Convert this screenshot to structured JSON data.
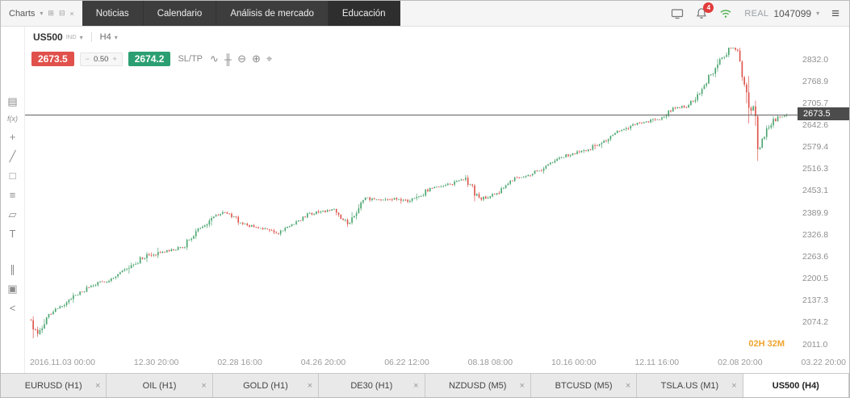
{
  "header": {
    "charts_label": "Charts",
    "nav_tabs": [
      "Noticias",
      "Calendario",
      "Análisis de mercado",
      "Educación"
    ],
    "notification_count": "4",
    "badge_color": "#e23b3b",
    "connection_color": "#4caf50",
    "account_type": "REAL",
    "account_number": "1047099"
  },
  "icons": {
    "caret_down": "▾",
    "hamburger": "≡",
    "close": "×",
    "popout": "⊞",
    "collapse": "⊟"
  },
  "symbol_bar": {
    "symbol": "US500",
    "market": "IND",
    "timeframe": "H4"
  },
  "trade": {
    "sell_price": "2673.5",
    "minus": "−",
    "spread": "0.50",
    "plus": "+",
    "buy_price": "2674.2",
    "sltp": "SL/TP",
    "colors": {
      "sell": "#e0514c",
      "buy": "#2c9f72"
    },
    "icons": [
      {
        "name": "line-chart-icon",
        "glyph": "∿"
      },
      {
        "name": "candles-icon",
        "glyph": "╫"
      },
      {
        "name": "zoom-out-icon",
        "glyph": "⊖"
      },
      {
        "name": "zoom-in-icon",
        "glyph": "⊕"
      },
      {
        "name": "pan-icon",
        "glyph": "⌖"
      }
    ]
  },
  "tool_rail": {
    "icons": [
      {
        "name": "chart-display-icon",
        "glyph": "▤"
      },
      {
        "name": "indicators-icon",
        "glyph": "f(x)"
      },
      {
        "name": "crosshair-icon",
        "glyph": "+"
      },
      {
        "name": "trendline-icon",
        "glyph": "╱"
      },
      {
        "name": "shapes-icon",
        "glyph": "□"
      },
      {
        "name": "fibonacci-icon",
        "glyph": "≡"
      },
      {
        "name": "eraser-icon",
        "glyph": "▱"
      },
      {
        "name": "text-tool-icon",
        "glyph": "T"
      },
      {
        "name": "volume-icon",
        "glyph": "∥"
      },
      {
        "name": "objects-icon",
        "glyph": "▣"
      },
      {
        "name": "share-icon",
        "glyph": "<"
      }
    ]
  },
  "chart": {
    "price_badge": "2673.5",
    "countdown": "02H 32M",
    "colors": {
      "price_line": "#5f5f5f",
      "badge_bg": "#4c4c4c",
      "countdown": "#efa42d"
    },
    "y_ticks": [
      "2832.0",
      "2768.9",
      "2705.7",
      "2642.6",
      "2579.4",
      "2516.3",
      "2453.1",
      "2389.9",
      "2326.8",
      "2263.6",
      "2200.5",
      "2137.3",
      "2074.2",
      "2011.0"
    ],
    "x_ticks": [
      "2016.11.03 00:00",
      "12.30 20:00",
      "02.28 16:00",
      "04.26 20:00",
      "06.22 12:00",
      "08.18 08:00",
      "10.16 00:00",
      "12.11 16:00",
      "02.08 20:00",
      "03.22 20:00"
    ]
  },
  "chart_data": {
    "type": "candlestick",
    "symbol": "US500",
    "timeframe": "H4",
    "current_price": 2673.5,
    "axis_top": 2832.0,
    "axis_bottom": 2011.0,
    "candle_count": 340,
    "colors": {
      "up": "#4aa56f",
      "down": "#de544d"
    },
    "trend_anchors": [
      [
        0.0,
        2083
      ],
      [
        0.008,
        2036
      ],
      [
        0.02,
        2090
      ],
      [
        0.05,
        2140
      ],
      [
        0.08,
        2180
      ],
      [
        0.11,
        2205
      ],
      [
        0.13,
        2238
      ],
      [
        0.155,
        2268
      ],
      [
        0.18,
        2280
      ],
      [
        0.2,
        2290
      ],
      [
        0.23,
        2363
      ],
      [
        0.255,
        2395
      ],
      [
        0.285,
        2355
      ],
      [
        0.31,
        2345
      ],
      [
        0.325,
        2330
      ],
      [
        0.345,
        2355
      ],
      [
        0.367,
        2387
      ],
      [
        0.4,
        2400
      ],
      [
        0.42,
        2357
      ],
      [
        0.44,
        2430
      ],
      [
        0.478,
        2434
      ],
      [
        0.5,
        2425
      ],
      [
        0.53,
        2460
      ],
      [
        0.56,
        2478
      ],
      [
        0.575,
        2490
      ],
      [
        0.594,
        2430
      ],
      [
        0.615,
        2445
      ],
      [
        0.64,
        2490
      ],
      [
        0.67,
        2510
      ],
      [
        0.7,
        2550
      ],
      [
        0.712,
        2557
      ],
      [
        0.74,
        2575
      ],
      [
        0.76,
        2600
      ],
      [
        0.78,
        2630
      ],
      [
        0.8,
        2647
      ],
      [
        0.834,
        2662
      ],
      [
        0.85,
        2690
      ],
      [
        0.87,
        2700
      ],
      [
        0.885,
        2740
      ],
      [
        0.9,
        2790
      ],
      [
        0.915,
        2838
      ],
      [
        0.928,
        2872
      ],
      [
        0.936,
        2855
      ],
      [
        0.944,
        2762
      ],
      [
        0.95,
        2648
      ],
      [
        0.956,
        2695
      ],
      [
        0.963,
        2581
      ],
      [
        0.972,
        2620
      ],
      [
        0.982,
        2656
      ],
      [
        1.0,
        2673.5
      ]
    ]
  },
  "bottom_tabs": {
    "tabs": [
      {
        "label": "EURUSD (H1)",
        "active": false
      },
      {
        "label": "OIL (H1)",
        "active": false
      },
      {
        "label": "GOLD (H1)",
        "active": false
      },
      {
        "label": "DE30 (H1)",
        "active": false
      },
      {
        "label": "NZDUSD (M5)",
        "active": false
      },
      {
        "label": "BTCUSD (M5)",
        "active": false
      },
      {
        "label": "TSLA.US (M1)",
        "active": false
      },
      {
        "label": "US500 (H4)",
        "active": true
      }
    ]
  }
}
